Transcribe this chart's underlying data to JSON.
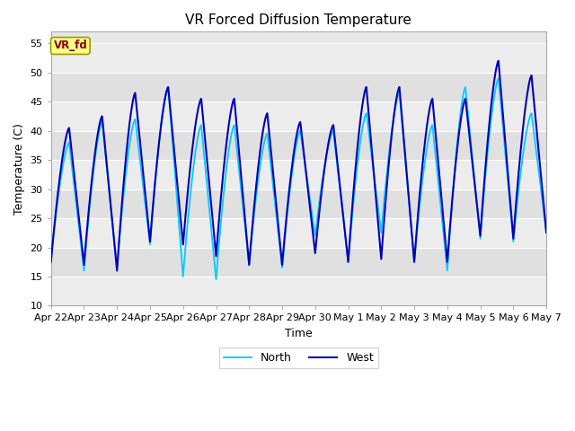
{
  "title": "VR Forced Diffusion Temperature",
  "xlabel": "Time",
  "ylabel": "Temperature (C)",
  "ylim": [
    10,
    57
  ],
  "yticks": [
    10,
    15,
    20,
    25,
    30,
    35,
    40,
    45,
    50,
    55
  ],
  "plot_bg_color": "#e8e8e8",
  "west_color": "#0000bb",
  "north_color": "#00ccff",
  "annotation_text": "VR_fd",
  "annotation_facecolor": "#ffff88",
  "annotation_textcolor": "#880000",
  "legend_west": "West",
  "legend_north": "North",
  "x_labels": [
    "Apr 22",
    "Apr 23",
    "Apr 24",
    "Apr 25",
    "Apr 26",
    "Apr 27",
    "Apr 28",
    "Apr 29",
    "Apr 30",
    "May 1",
    "May 2",
    "May 3",
    "May 4",
    "May 5",
    "May 6",
    "May 7"
  ],
  "band_colors": [
    "#ececec",
    "#e0e0e0"
  ],
  "figsize": [
    6.4,
    4.8
  ],
  "dpi": 100,
  "west_peaks": [
    40.5,
    42.5,
    46.5,
    47.5,
    45.5,
    45.5,
    43.0,
    41.5,
    41.0,
    47.5,
    47.5,
    45.5,
    45.5,
    52.0,
    49.5,
    23.0
  ],
  "west_troughs": [
    17.5,
    17.0,
    16.0,
    21.0,
    20.5,
    18.5,
    17.0,
    17.0,
    19.0,
    17.5,
    18.0,
    17.5,
    17.5,
    22.0,
    21.5,
    22.5
  ],
  "north_peaks": [
    38.0,
    41.5,
    42.0,
    47.5,
    41.0,
    41.0,
    39.5,
    40.0,
    40.0,
    43.0,
    46.5,
    41.0,
    47.5,
    49.0,
    43.0,
    23.0
  ],
  "north_troughs": [
    18.0,
    16.0,
    16.5,
    20.5,
    15.0,
    14.5,
    17.0,
    16.5,
    22.0,
    17.5,
    22.5,
    17.5,
    16.0,
    21.5,
    21.0,
    22.5
  ]
}
